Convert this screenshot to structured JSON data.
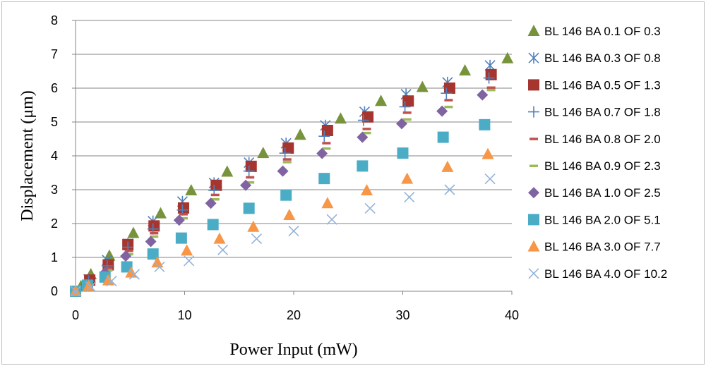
{
  "chart_data": {
    "type": "scatter",
    "title": "",
    "xlabel": "Power Input (mW)",
    "ylabel": "Displacement (μm)",
    "xlim": [
      0,
      40
    ],
    "ylim": [
      0,
      8
    ],
    "xticks": [
      0,
      10,
      20,
      30,
      40
    ],
    "yticks": [
      0,
      1,
      2,
      3,
      4,
      5,
      6,
      7,
      8
    ],
    "grid": "horizontal",
    "legend_position": "right",
    "series": [
      {
        "name": "BL 146 BA 0.1 OF 0.3",
        "marker": "triangle",
        "color": "#77933C",
        "points": [
          [
            0,
            0
          ],
          [
            0.5,
            0.15
          ],
          [
            1.4,
            0.5
          ],
          [
            3.1,
            1.05
          ],
          [
            5.3,
            1.72
          ],
          [
            7.8,
            2.3
          ],
          [
            10.6,
            2.98
          ],
          [
            13.9,
            3.53
          ],
          [
            17.2,
            4.08
          ],
          [
            20.6,
            4.62
          ],
          [
            24.3,
            5.1
          ],
          [
            28.0,
            5.62
          ],
          [
            31.8,
            6.03
          ],
          [
            35.7,
            6.52
          ],
          [
            39.6,
            6.88
          ]
        ]
      },
      {
        "name": "BL 146 BA 0.3 OF 0.8",
        "marker": "asterisk",
        "color": "#4F81BD",
        "points": [
          [
            0,
            0
          ],
          [
            1.2,
            0.35
          ],
          [
            2.9,
            0.92
          ],
          [
            4.8,
            1.4
          ],
          [
            7.1,
            2.07
          ],
          [
            9.8,
            2.65
          ],
          [
            12.7,
            3.2
          ],
          [
            15.9,
            3.8
          ],
          [
            19.3,
            4.37
          ],
          [
            22.9,
            4.9
          ],
          [
            26.5,
            5.3
          ],
          [
            30.3,
            5.82
          ],
          [
            34.1,
            6.17
          ],
          [
            38.0,
            6.67
          ]
        ]
      },
      {
        "name": "BL 146 BA 0.5 OF 1.3",
        "marker": "square",
        "color": "#A5352E",
        "points": [
          [
            0,
            0
          ],
          [
            1.3,
            0.33
          ],
          [
            3.0,
            0.78
          ],
          [
            4.8,
            1.38
          ],
          [
            7.2,
            1.93
          ],
          [
            9.9,
            2.46
          ],
          [
            12.9,
            3.13
          ],
          [
            16.1,
            3.69
          ],
          [
            19.5,
            4.23
          ],
          [
            23.1,
            4.75
          ],
          [
            26.8,
            5.15
          ],
          [
            30.5,
            5.62
          ],
          [
            34.3,
            6.0
          ],
          [
            38.1,
            6.4
          ]
        ]
      },
      {
        "name": "BL 146 BA 0.7 OF 1.8",
        "marker": "plus",
        "color": "#4F81BD",
        "points": [
          [
            0,
            0
          ],
          [
            1.2,
            0.3
          ],
          [
            2.9,
            0.75
          ],
          [
            4.8,
            1.3
          ],
          [
            7.1,
            1.84
          ],
          [
            9.8,
            2.4
          ],
          [
            12.7,
            2.98
          ],
          [
            15.9,
            3.55
          ],
          [
            19.2,
            4.08
          ],
          [
            22.8,
            4.58
          ],
          [
            26.4,
            5.05
          ],
          [
            30.2,
            5.45
          ],
          [
            34.0,
            5.85
          ],
          [
            37.9,
            6.3
          ]
        ]
      },
      {
        "name": "BL 146 BA 0.8 OF 2.0",
        "marker": "dash",
        "color": "#C0504D",
        "points": [
          [
            0,
            0
          ],
          [
            1.2,
            0.25
          ],
          [
            3.0,
            0.68
          ],
          [
            4.9,
            1.2
          ],
          [
            7.2,
            1.72
          ],
          [
            9.9,
            2.28
          ],
          [
            12.8,
            2.85
          ],
          [
            16.0,
            3.37
          ],
          [
            19.4,
            3.9
          ],
          [
            23.0,
            4.38
          ],
          [
            26.7,
            4.8
          ],
          [
            30.4,
            5.28
          ],
          [
            34.2,
            5.65
          ],
          [
            38.1,
            6.02
          ]
        ]
      },
      {
        "name": "BL 146 BA 0.9 OF 2.3",
        "marker": "dash",
        "color": "#9BBB59",
        "points": [
          [
            0,
            0
          ],
          [
            1.2,
            0.22
          ],
          [
            3.0,
            0.62
          ],
          [
            4.9,
            1.1
          ],
          [
            7.2,
            1.62
          ],
          [
            9.9,
            2.16
          ],
          [
            12.8,
            2.72
          ],
          [
            16.0,
            3.22
          ],
          [
            19.4,
            3.82
          ],
          [
            23.0,
            4.22
          ],
          [
            26.7,
            4.68
          ],
          [
            30.4,
            5.08
          ],
          [
            34.2,
            5.45
          ],
          [
            38.1,
            5.95
          ]
        ]
      },
      {
        "name": "BL 146 BA 1.0 OF 2.5",
        "marker": "diamond",
        "color": "#8064A2",
        "points": [
          [
            0,
            0
          ],
          [
            1.0,
            0.2
          ],
          [
            2.7,
            0.55
          ],
          [
            4.6,
            1.04
          ],
          [
            6.9,
            1.47
          ],
          [
            9.5,
            2.1
          ],
          [
            12.4,
            2.6
          ],
          [
            15.6,
            3.13
          ],
          [
            19.0,
            3.55
          ],
          [
            22.6,
            4.07
          ],
          [
            26.3,
            4.55
          ],
          [
            29.9,
            4.95
          ],
          [
            33.6,
            5.32
          ],
          [
            37.3,
            5.8
          ]
        ]
      },
      {
        "name": "BL 146 BA 2.0 OF 5.1",
        "marker": "square",
        "color": "#4BACC6",
        "points": [
          [
            0,
            0
          ],
          [
            1.1,
            0.18
          ],
          [
            2.7,
            0.42
          ],
          [
            4.7,
            0.72
          ],
          [
            7.1,
            1.1
          ],
          [
            9.7,
            1.57
          ],
          [
            12.6,
            1.97
          ],
          [
            15.9,
            2.45
          ],
          [
            19.3,
            2.84
          ],
          [
            22.8,
            3.33
          ],
          [
            26.3,
            3.7
          ],
          [
            30.0,
            4.08
          ],
          [
            33.7,
            4.55
          ],
          [
            37.5,
            4.92
          ]
        ]
      },
      {
        "name": "BL 146 BA 3.0 OF 7.7",
        "marker": "triangle",
        "color": "#F79646",
        "points": [
          [
            0,
            0
          ],
          [
            1.2,
            0.15
          ],
          [
            3.0,
            0.32
          ],
          [
            5.1,
            0.55
          ],
          [
            7.5,
            0.85
          ],
          [
            10.2,
            1.2
          ],
          [
            13.2,
            1.55
          ],
          [
            16.3,
            1.9
          ],
          [
            19.6,
            2.25
          ],
          [
            23.1,
            2.6
          ],
          [
            26.7,
            2.98
          ],
          [
            30.4,
            3.32
          ],
          [
            34.1,
            3.67
          ],
          [
            37.8,
            4.05
          ]
        ]
      },
      {
        "name": "BL 146 BA 4.0 OF 10.2",
        "marker": "cross",
        "color": "#95B3D7",
        "points": [
          [
            0,
            0
          ],
          [
            1.4,
            0.13
          ],
          [
            3.3,
            0.3
          ],
          [
            5.4,
            0.5
          ],
          [
            7.7,
            0.72
          ],
          [
            10.4,
            0.9
          ],
          [
            13.5,
            1.22
          ],
          [
            16.6,
            1.55
          ],
          [
            20.0,
            1.78
          ],
          [
            23.5,
            2.12
          ],
          [
            27.0,
            2.45
          ],
          [
            30.6,
            2.78
          ],
          [
            34.3,
            3.0
          ],
          [
            38.0,
            3.32
          ]
        ]
      }
    ]
  }
}
